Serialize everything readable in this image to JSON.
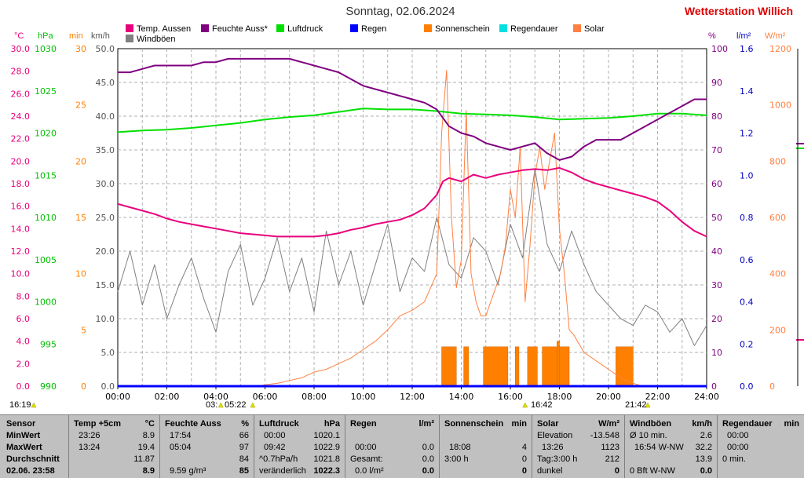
{
  "title": "Sonntag, 02.06.2024",
  "brand": "Wetterstation Willich",
  "legend": [
    {
      "label": "Temp. Aussen",
      "color": "#e8007c"
    },
    {
      "label": "Feuchte Auss*",
      "color": "#800080"
    },
    {
      "label": "Luftdruck",
      "color": "#00e000"
    },
    {
      "label": "Regen",
      "color": "#0000ff"
    },
    {
      "label": "Sonnenschein",
      "color": "#ff8000"
    },
    {
      "label": "Regendauer",
      "color": "#00e0e0"
    },
    {
      "label": "Solar",
      "color": "#ff8040"
    },
    {
      "label": "Windböen",
      "color": "#808080"
    }
  ],
  "axes": {
    "temp": {
      "unit": "°C",
      "ticks": [
        "0.0",
        "2.0",
        "4.0",
        "6.0",
        "8.0",
        "10.0",
        "12.0",
        "14.0",
        "16.0",
        "18.0",
        "20.0",
        "22.0",
        "24.0",
        "26.0",
        "28.0",
        "30.0"
      ],
      "color": "#e8007c"
    },
    "pressure": {
      "unit": "hPa",
      "ticks": [
        "990",
        "995",
        "1000",
        "1005",
        "1010",
        "1015",
        "1020",
        "1025",
        "1030"
      ],
      "color": "#00c000"
    },
    "minutes": {
      "unit": "min",
      "ticks": [
        "0",
        "5",
        "10",
        "15",
        "20",
        "25",
        "30"
      ],
      "color": "#ff8000"
    },
    "wind": {
      "unit": "km/h",
      "ticks": [
        "0.0",
        "5.0",
        "10.0",
        "15.0",
        "20.0",
        "25.0",
        "30.0",
        "35.0",
        "40.0",
        "45.0",
        "50.0"
      ],
      "color": "#555555"
    },
    "humidity": {
      "unit": "%",
      "ticks": [
        "0",
        "10",
        "20",
        "30",
        "40",
        "50",
        "60",
        "70",
        "80",
        "90",
        "100"
      ],
      "color": "#800080"
    },
    "rain": {
      "unit": "l/m²",
      "ticks": [
        "0.0",
        "0.2",
        "0.4",
        "0.6",
        "0.8",
        "1.0",
        "1.2",
        "1.4",
        "1.6"
      ],
      "color": "#0000c0"
    },
    "solar": {
      "unit": "W/m²",
      "ticks": [
        "0",
        "200",
        "400",
        "600",
        "800",
        "1000",
        "1200"
      ],
      "color": "#ff8040"
    },
    "time_ticks": [
      "00:00",
      "02:00",
      "04:00",
      "06:00",
      "08:00",
      "10:00",
      "12:00",
      "14:00",
      "16:00",
      "18:00",
      "20:00",
      "22:00",
      "24:00"
    ]
  },
  "markers": {
    "sunrise": "16:19",
    "t1": "03:",
    "t2": "05:22",
    "t3": "16:42",
    "t4": "21:42"
  },
  "chart_data": {
    "type": "line",
    "x_unit": "hours",
    "xlim": [
      0,
      24
    ],
    "series": [
      {
        "name": "Temp. Aussen",
        "axis": "temp",
        "color": "#e8007c",
        "x": [
          0,
          0.5,
          1,
          1.5,
          2,
          2.5,
          3,
          3.5,
          4,
          4.5,
          5,
          5.5,
          6,
          6.5,
          7,
          7.5,
          8,
          8.5,
          9,
          9.5,
          10,
          10.5,
          11,
          11.5,
          12,
          12.5,
          13,
          13.25,
          13.5,
          14,
          14.5,
          15,
          15.5,
          16,
          16.5,
          17,
          17.5,
          18,
          18.5,
          19,
          19.5,
          20,
          20.5,
          21,
          21.5,
          22,
          22.5,
          23,
          23.5,
          24
        ],
        "y": [
          16.2,
          15.9,
          15.6,
          15.3,
          14.9,
          14.6,
          14.4,
          14.2,
          14.0,
          13.8,
          13.6,
          13.5,
          13.4,
          13.3,
          13.3,
          13.3,
          13.3,
          13.4,
          13.6,
          13.9,
          14.1,
          14.4,
          14.6,
          14.8,
          15.2,
          15.8,
          17.0,
          18.2,
          18.5,
          18.2,
          18.8,
          18.5,
          18.8,
          19.0,
          19.2,
          19.3,
          19.2,
          19.4,
          19.0,
          18.4,
          18.0,
          17.7,
          17.4,
          17.1,
          16.8,
          16.4,
          15.6,
          14.6,
          13.8,
          13.3
        ]
      },
      {
        "name": "Feuchte Auss*",
        "axis": "humidity",
        "color": "#800080",
        "x": [
          0,
          0.5,
          1,
          1.5,
          2,
          2.5,
          3,
          3.5,
          4,
          4.5,
          5,
          5.5,
          6,
          6.5,
          7,
          7.5,
          8,
          8.5,
          9,
          9.5,
          10,
          10.5,
          11,
          11.5,
          12,
          12.5,
          13,
          13.5,
          14,
          14.5,
          15,
          15.5,
          16,
          16.5,
          17,
          17.5,
          18,
          18.5,
          19,
          19.5,
          20,
          20.5,
          21,
          21.5,
          22,
          22.5,
          23,
          23.5,
          24
        ],
        "y": [
          93,
          93,
          94,
          95,
          95,
          95,
          95,
          96,
          96,
          97,
          97,
          97,
          97,
          97,
          97,
          96,
          95,
          94,
          93,
          91,
          89,
          88,
          87,
          86,
          85,
          84,
          82,
          77,
          75,
          74,
          72,
          71,
          70,
          71,
          72,
          69,
          67,
          68,
          71,
          73,
          73,
          73,
          75,
          77,
          79,
          81,
          83,
          85,
          85
        ]
      },
      {
        "name": "Luftdruck",
        "axis": "pressure",
        "color": "#00e000",
        "x": [
          0,
          1,
          2,
          3,
          4,
          5,
          6,
          7,
          8,
          9,
          10,
          11,
          12,
          13,
          14,
          15,
          16,
          17,
          18,
          19,
          20,
          21,
          22,
          23,
          24
        ],
        "y": [
          1020.1,
          1020.3,
          1020.4,
          1020.6,
          1020.9,
          1021.2,
          1021.6,
          1021.9,
          1022.1,
          1022.5,
          1022.9,
          1022.8,
          1022.8,
          1022.6,
          1022.3,
          1022.2,
          1022.1,
          1021.9,
          1021.6,
          1021.7,
          1021.8,
          1022.0,
          1022.3,
          1022.3,
          1022.1
        ]
      },
      {
        "name": "Solar",
        "axis": "solar",
        "color": "#ff8040",
        "x": [
          0,
          5.7,
          6,
          6.5,
          7,
          7.5,
          8,
          8.5,
          9,
          9.5,
          10,
          10.5,
          11,
          11.5,
          12,
          12.5,
          13,
          13.2,
          13.4,
          13.6,
          13.8,
          14,
          14.2,
          14.4,
          14.6,
          14.8,
          15,
          15.2,
          15.4,
          15.6,
          15.8,
          16,
          16.2,
          16.4,
          16.6,
          16.8,
          17,
          17.2,
          17.4,
          17.6,
          17.8,
          18,
          18.2,
          18.4,
          18.6,
          18.8,
          19,
          19.5,
          20,
          20.5,
          21,
          21.4,
          24
        ],
        "y": [
          0,
          0,
          5,
          10,
          20,
          30,
          50,
          60,
          80,
          100,
          130,
          160,
          200,
          250,
          270,
          300,
          400,
          900,
          1123,
          600,
          350,
          450,
          980,
          400,
          300,
          250,
          250,
          300,
          350,
          400,
          500,
          700,
          600,
          850,
          300,
          500,
          750,
          850,
          700,
          800,
          900,
          560,
          400,
          200,
          180,
          150,
          120,
          90,
          60,
          30,
          10,
          0,
          0
        ]
      },
      {
        "name": "Windböen",
        "axis": "wind",
        "color": "#808080",
        "x": [
          0,
          0.5,
          1,
          1.5,
          2,
          2.5,
          3,
          3.5,
          4,
          4.5,
          5,
          5.5,
          6,
          6.5,
          7,
          7.5,
          8,
          8.5,
          9,
          9.5,
          10,
          10.5,
          11,
          11.5,
          12,
          12.5,
          13,
          13.5,
          14,
          14.5,
          15,
          15.5,
          16,
          16.5,
          17,
          17.5,
          18,
          18.5,
          19,
          19.5,
          20,
          20.5,
          21,
          21.5,
          22,
          22.5,
          23,
          23.5,
          24
        ],
        "y": [
          14,
          20,
          12,
          18,
          10,
          15,
          19,
          13,
          8,
          17,
          21,
          12,
          16,
          22,
          14,
          19,
          11,
          23,
          15,
          20,
          12,
          18,
          24,
          14,
          19,
          17,
          25,
          18,
          16,
          22,
          20,
          15,
          24,
          19,
          32.2,
          21,
          17,
          23,
          18,
          14,
          12,
          10,
          9,
          12,
          11,
          8,
          10,
          6,
          9
        ]
      },
      {
        "name": "Regen",
        "axis": "rain",
        "color": "#0000ff",
        "x": [
          0,
          24
        ],
        "y": [
          0,
          0
        ]
      }
    ],
    "sunshine_min": [
      {
        "start": 13.2,
        "end": 13.8,
        "value": 3.5
      },
      {
        "start": 14.1,
        "end": 14.3,
        "value": 3.5
      },
      {
        "start": 14.9,
        "end": 15.9,
        "value": 3.5
      },
      {
        "start": 16.2,
        "end": 16.35,
        "value": 3.5
      },
      {
        "start": 16.7,
        "end": 17.1,
        "value": 3.5
      },
      {
        "start": 17.3,
        "end": 18.4,
        "value": 3.5
      },
      {
        "start": 17.9,
        "end": 18.0,
        "value": 4
      },
      {
        "start": 20.3,
        "end": 21.0,
        "value": 3.5
      }
    ]
  },
  "table": {
    "rowlabels": [
      "Sensor",
      "MinWert",
      "MaxWert",
      "Durchschnitt",
      "02.06. 23:58"
    ],
    "temp": {
      "h1": "Temp +5cm",
      "h2": "°C",
      "rows": [
        [
          "23:26",
          "8.9"
        ],
        [
          "13:24",
          "19.4"
        ],
        [
          "",
          "11.87"
        ],
        [
          "",
          "8.9"
        ]
      ]
    },
    "hum": {
      "h1": "Feuchte Auss",
      "h2": "%",
      "rows": [
        [
          "17:54",
          "66"
        ],
        [
          "05:04",
          "97"
        ],
        [
          "",
          "84"
        ],
        [
          "9.59 g/m³",
          "85"
        ]
      ]
    },
    "press": {
      "h1": "Luftdruck",
      "h2": "hPa",
      "rows": [
        [
          "00:00",
          "1020.1"
        ],
        [
          "09:42",
          "1022.9"
        ],
        [
          "^0.7hPa/h",
          "1021.8"
        ],
        [
          "veränderlich",
          "1022.3"
        ]
      ]
    },
    "rain": {
      "h1": "Regen",
      "h2": "l/m²",
      "rows": [
        [
          "",
          ""
        ],
        [
          "00:00",
          "0.0"
        ],
        [
          "Gesamt:",
          "0.0"
        ],
        [
          "0.0 l/m²",
          "0.0"
        ]
      ]
    },
    "sun": {
      "h1": "Sonnenschein",
      "h2": "min",
      "rows": [
        [
          "",
          ""
        ],
        [
          "18:08",
          "4"
        ],
        [
          "3:00 h",
          "0"
        ],
        [
          "",
          "0"
        ]
      ]
    },
    "solar": {
      "h1": "Solar",
      "h2": "W/m²",
      "rows": [
        [
          "Elevation",
          "-13.548"
        ],
        [
          "13:26",
          "1123"
        ],
        [
          "Tag:3:00 h",
          "212"
        ],
        [
          "dunkel",
          "0"
        ]
      ]
    },
    "wind": {
      "h1": "Windböen",
      "h2": "km/h",
      "rows": [
        [
          "Ø 10 min.",
          "2.6"
        ],
        [
          "16:54  W-NW",
          "32.2"
        ],
        [
          "",
          "13.9"
        ],
        [
          "0 Bft W-NW",
          "0.0"
        ]
      ]
    },
    "raindur": {
      "h1": "Regendauer",
      "h2": "min",
      "rows": [
        [
          "00:00",
          ""
        ],
        [
          "00:00",
          ""
        ],
        [
          "0 min.",
          ""
        ],
        [
          "",
          ""
        ]
      ]
    }
  }
}
